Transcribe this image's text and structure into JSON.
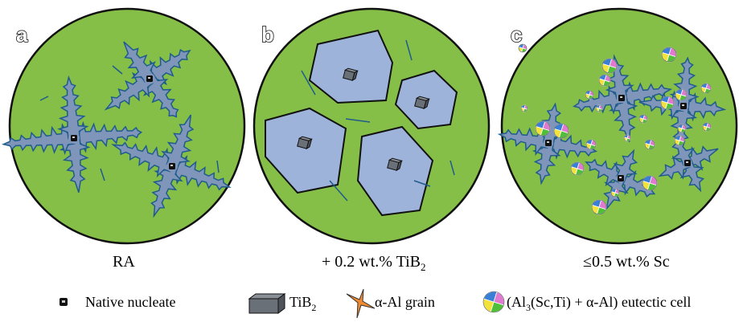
{
  "panels": [
    {
      "label": "a",
      "caption": {
        "text": "RA"
      }
    },
    {
      "label": "b",
      "caption": {
        "text": "+ 0.2 wt.% TiB",
        "sub": "2"
      }
    },
    {
      "label": "c",
      "caption": {
        "text": "≤0.5 wt.% Sc"
      }
    }
  ],
  "legend": [
    {
      "text": "Native nucleate"
    },
    {
      "text": "TiB",
      "sub": "2"
    },
    {
      "text": "α-Al grain"
    },
    {
      "text": "(Al",
      "sub": "3",
      "rest": "(Sc,Ti) + α-Al) eutectic cell"
    }
  ]
}
